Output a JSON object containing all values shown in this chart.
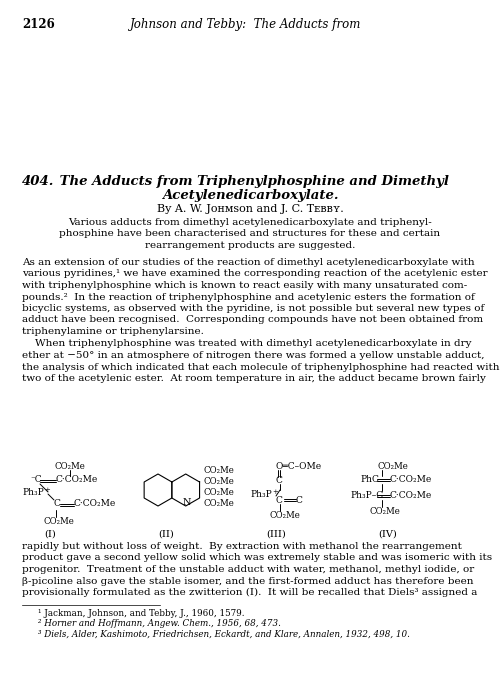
{
  "page_number": "2126",
  "header_text": "Johnson and Tebby:  The Adducts from",
  "title_num": "404.",
  "title_rest": "  The Adducts from Triphenylphosphine and Dimethyl",
  "title_line2": "Acetylenedicarboxylate.",
  "authors": "By A. W. Jᴏʜᴍson and J. C. Tᴇʙʙʏ.",
  "abstract_lines": [
    "Various adducts from dimethyl acetylenedicarboxylate and triphenyl-",
    "phosphine have been characterised and structures for these and certain",
    "rearrangement products are suggested."
  ],
  "body1_lines": [
    "As an extension of our studies of the reaction of dimethyl acetylenedicarboxylate with",
    "various pyridines,¹ we have examined the corresponding reaction of the acetylenic ester",
    "with triphenylphosphine which is known to react easily with many unsaturated com-",
    "pounds.²  In the reaction of triphenylphosphine and acetylenic esters the formation of",
    "bicyclic systems, as observed with the pyridine, is not possible but several new types of",
    "adduct have been recognised.  Corresponding compounds have not been obtained from",
    "triphenylamine or triphenylarsine."
  ],
  "body2_lines": [
    "    When triphenylphosphine was treated with dimethyl acetylenedicarboxylate in dry",
    "ether at −50° in an atmosphere of nitrogen there was formed a yellow unstable adduct,",
    "the analysis of which indicated that each molecule of triphenylphosphine had reacted with",
    "two of the acetylenic ester.  At room temperature in air, the adduct became brown fairly"
  ],
  "body3_lines": [
    "rapidly but without loss of weight.  By extraction with methanol the rearrangement",
    "product gave a second yellow solid which was extremely stable and was isomeric with its",
    "progenitor.  Treatment of the unstable adduct with water, methanol, methyl iodide, or",
    "β-picoline also gave the stable isomer, and the first-formed adduct has therefore been",
    "provisionally formulated as the zwitterion (I).  It will be recalled that Diels³ assigned a"
  ],
  "footnotes": [
    "¹ Jackman, Johnson, and Tebby, J., 1960, 1579.",
    "² Horner and Hoffmann, Angew. Chem., 1956, 68, 473.",
    "³ Diels, Alder, Kashimoto, Friedrichsen, Eckardt, and Klare, Annalen, 1932, 498, 10."
  ]
}
